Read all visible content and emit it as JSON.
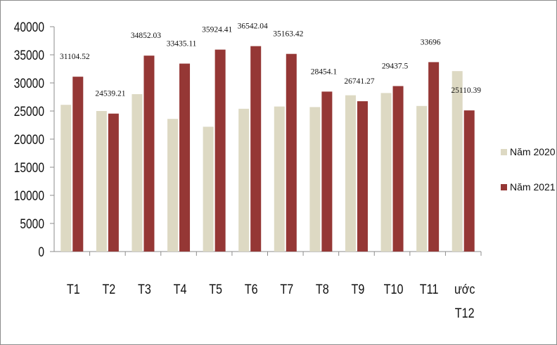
{
  "chart_data": {
    "type": "bar",
    "categories": [
      "T1",
      "T2",
      "T3",
      "T4",
      "T5",
      "T6",
      "T7",
      "T8",
      "T9",
      "T10",
      "T11",
      [
        "ước",
        "T12"
      ]
    ],
    "series": [
      {
        "name": "Năm 2020",
        "color": "#ddd9c3",
        "values": [
          26100,
          25000,
          28000,
          23600,
          22200,
          25400,
          25800,
          25700,
          27800,
          28200,
          25900,
          32100
        ]
      },
      {
        "name": "Năm 2021",
        "color": "#953735",
        "values": [
          31104.52,
          24539.21,
          34852.03,
          33435.11,
          35924.41,
          36542.04,
          35163.42,
          28454.1,
          26741.27,
          29437.5,
          33696,
          25110.39
        ]
      }
    ],
    "data_labels": [
      "31104.52",
      "24539.21",
      "34852.03",
      "33435.11",
      "35924.41",
      "36542.04",
      "35163.42",
      "28454.1",
      "26741.27",
      "29437.5",
      "33696",
      "25110.39"
    ],
    "yticks": [
      "0",
      "5000",
      "10000",
      "15000",
      "20000",
      "25000",
      "30000",
      "35000",
      "40000"
    ],
    "ylim": [
      0,
      40000
    ],
    "grid": false,
    "legend_position": "right"
  }
}
